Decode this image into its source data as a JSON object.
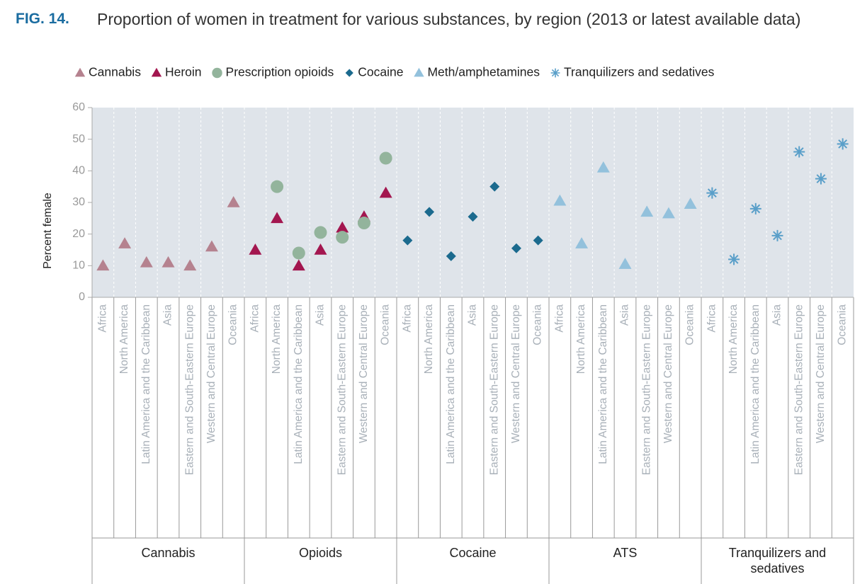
{
  "fig_label": "FIG. 14.",
  "chart_data": {
    "type": "scatter",
    "title": "Proportion of women in treatment for various substances, by region (2013 or latest available data)",
    "y_label": "Percent female",
    "ylim": [
      0,
      60
    ],
    "yticks": [
      0,
      10,
      20,
      30,
      40,
      50,
      60
    ],
    "grid": false,
    "legend": "top",
    "category_groups": [
      "Cannabis",
      "Opioids",
      "Cocaine",
      "ATS",
      "Tranquilizers and sedatives"
    ],
    "categories": [
      "Africa",
      "North America",
      "Latin America and the Caribbean",
      "Asia",
      "Eastern and South-Eastern Europe",
      "Western and Central Europe",
      "Oceania",
      "Africa",
      "North America",
      "Latin America and the Caribbean",
      "Asia",
      "Eastern and South-Eastern Europe",
      "Western and Central Europe",
      "Oceania",
      "Africa",
      "North America",
      "Latin America and the Caribbean",
      "Asia",
      "Eastern and South-Eastern Europe",
      "Western and Central Europe",
      "Oceania",
      "Africa",
      "North America",
      "Latin America and the Caribbean",
      "Asia",
      "Eastern and South-Eastern Europe",
      "Western and Central Europe",
      "Oceania",
      "Africa",
      "North America",
      "Latin America and the Caribbean",
      "Asia",
      "Eastern and South-Eastern Europe",
      "Western and Central Europe",
      "Oceania"
    ],
    "series": [
      {
        "name": "Cannabis",
        "color": "#b5828f",
        "marker": "triangle",
        "values": [
          10,
          17,
          11,
          11,
          10,
          16,
          30,
          null,
          null,
          null,
          null,
          null,
          null,
          null,
          null,
          null,
          null,
          null,
          null,
          null,
          null,
          null,
          null,
          null,
          null,
          null,
          null,
          null,
          null,
          null,
          null,
          null,
          null,
          null,
          null
        ]
      },
      {
        "name": "Heroin",
        "color": "#a3164f",
        "marker": "triangle",
        "values": [
          null,
          null,
          null,
          null,
          null,
          null,
          null,
          15,
          25,
          10,
          15,
          22,
          25.5,
          33,
          null,
          null,
          null,
          null,
          null,
          null,
          null,
          null,
          null,
          null,
          null,
          null,
          null,
          null,
          null,
          null,
          null,
          null,
          null,
          null,
          null
        ]
      },
      {
        "name": "Prescription opioids",
        "color": "#93b49c",
        "marker": "circle",
        "values": [
          null,
          null,
          null,
          null,
          null,
          null,
          null,
          null,
          35,
          14,
          20.5,
          19,
          23.5,
          44,
          null,
          null,
          null,
          null,
          null,
          null,
          null,
          null,
          null,
          null,
          null,
          null,
          null,
          null,
          null,
          null,
          null,
          null,
          null,
          null,
          null
        ]
      },
      {
        "name": "Cocaine",
        "color": "#1b6a8e",
        "marker": "diamond",
        "values": [
          null,
          null,
          null,
          null,
          null,
          null,
          null,
          null,
          null,
          null,
          null,
          null,
          null,
          null,
          18,
          27,
          13,
          25.5,
          35,
          15.5,
          18,
          null,
          null,
          null,
          null,
          null,
          null,
          null,
          null,
          null,
          null,
          null,
          null,
          null,
          null
        ]
      },
      {
        "name": "Meth/amphetamines",
        "color": "#93c1dc",
        "marker": "triangle",
        "values": [
          null,
          null,
          null,
          null,
          null,
          null,
          null,
          null,
          null,
          null,
          null,
          null,
          null,
          null,
          null,
          null,
          null,
          null,
          null,
          null,
          null,
          30.5,
          17,
          41,
          10.5,
          27,
          26.5,
          29.5,
          null,
          null,
          null,
          null,
          null,
          null,
          null
        ]
      },
      {
        "name": "Tranquilizers and sedatives",
        "color": "#5a9fc9",
        "marker": "asterisk",
        "values": [
          null,
          null,
          null,
          null,
          null,
          null,
          null,
          null,
          null,
          null,
          null,
          null,
          null,
          null,
          null,
          null,
          null,
          null,
          null,
          null,
          null,
          null,
          null,
          null,
          null,
          null,
          null,
          null,
          33,
          12,
          28,
          19.5,
          46,
          37.5,
          48.5
        ]
      }
    ]
  }
}
